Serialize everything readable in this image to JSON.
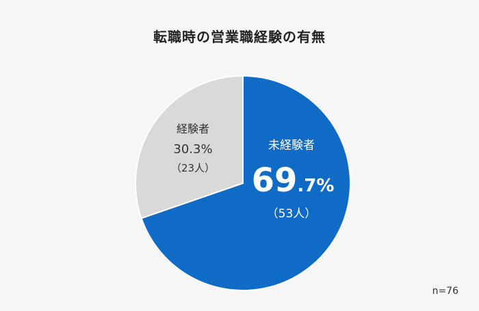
{
  "chart_data": {
    "type": "pie",
    "title": "転職時の営業職経験の有無",
    "slices": [
      {
        "name": "未経験者",
        "percent": 69.7,
        "percent_int": "69",
        "percent_dec": ".7%",
        "count_label": "（53人）",
        "count": 53,
        "color": "#0f6bc5"
      },
      {
        "name": "経験者",
        "percent": 30.3,
        "percent_label": "30.3%",
        "count_label": "（23人）",
        "count": 23,
        "color": "#d9d9d9"
      }
    ],
    "total_note": "n=76"
  }
}
